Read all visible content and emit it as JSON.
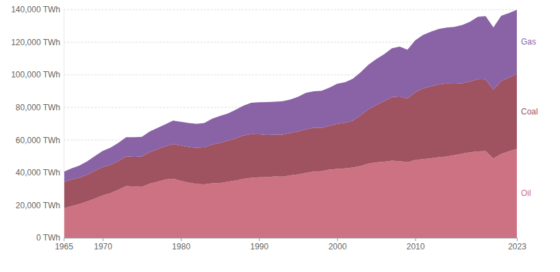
{
  "chart_data": {
    "type": "stacked_area",
    "stacked": true,
    "grid": true,
    "x": [
      1965,
      1966,
      1967,
      1968,
      1969,
      1970,
      1971,
      1972,
      1973,
      1974,
      1975,
      1976,
      1977,
      1978,
      1979,
      1980,
      1981,
      1982,
      1983,
      1984,
      1985,
      1986,
      1987,
      1988,
      1989,
      1990,
      1991,
      1992,
      1993,
      1994,
      1995,
      1996,
      1997,
      1998,
      1999,
      2000,
      2001,
      2002,
      2003,
      2004,
      2005,
      2006,
      2007,
      2008,
      2009,
      2010,
      2011,
      2012,
      2013,
      2014,
      2015,
      2016,
      2017,
      2018,
      2019,
      2020,
      2021,
      2022,
      2023
    ],
    "xlim": [
      1965,
      2023
    ],
    "xticks": [
      1965,
      1970,
      1980,
      1990,
      2000,
      2010,
      2023
    ],
    "ylim": [
      0,
      140000
    ],
    "yticks": [
      {
        "value": 0,
        "label": "0 TWh"
      },
      {
        "value": 20000,
        "label": "20,000 TWh"
      },
      {
        "value": 40000,
        "label": "40,000 TWh"
      },
      {
        "value": 60000,
        "label": "60,000 TWh"
      },
      {
        "value": 80000,
        "label": "80,000 TWh"
      },
      {
        "value": 100000,
        "label": "100,000 TWh"
      },
      {
        "value": 120000,
        "label": "120,000 TWh"
      },
      {
        "value": 140000,
        "label": "140,000 TWh"
      }
    ],
    "series": [
      {
        "name": "Oil",
        "color": "#cd7282",
        "values": [
          18100,
          19400,
          20700,
          22300,
          24100,
          26000,
          27400,
          29400,
          31700,
          31400,
          31200,
          33200,
          34400,
          35700,
          36300,
          34900,
          33800,
          33000,
          32800,
          33400,
          33500,
          34400,
          35100,
          36200,
          36800,
          37100,
          37200,
          37600,
          37500,
          38300,
          38900,
          39800,
          40700,
          40900,
          41800,
          42300,
          42600,
          43100,
          44000,
          45500,
          46200,
          46700,
          47300,
          47000,
          46300,
          47700,
          48200,
          48800,
          49400,
          49800,
          50700,
          51600,
          52400,
          53000,
          53200,
          48700,
          51500,
          53100,
          54600
        ]
      },
      {
        "name": "Coal",
        "color": "#9f5260",
        "values": [
          16100,
          16300,
          16100,
          16400,
          17000,
          17400,
          17300,
          17600,
          18200,
          18200,
          18600,
          19300,
          19900,
          20300,
          21200,
          21800,
          21900,
          22200,
          22800,
          23800,
          24700,
          25100,
          25900,
          26500,
          26800,
          26400,
          25900,
          25700,
          25800,
          25900,
          26300,
          26700,
          26800,
          26500,
          26800,
          27600,
          27900,
          28700,
          31100,
          33300,
          35300,
          37100,
          39000,
          39600,
          39200,
          41500,
          43500,
          44000,
          44700,
          44900,
          43900,
          43200,
          43500,
          44200,
          43800,
          42200,
          44700,
          45200,
          46000
        ]
      },
      {
        "name": "Gas",
        "color": "#8a62a6",
        "values": [
          6300,
          6900,
          7500,
          8200,
          9000,
          9900,
          10600,
          11200,
          11800,
          12100,
          12100,
          12700,
          13100,
          13600,
          14400,
          14500,
          14700,
          14700,
          14800,
          15900,
          16500,
          16700,
          17500,
          18300,
          19200,
          19600,
          20100,
          20200,
          20500,
          20600,
          21300,
          22400,
          22400,
          22800,
          23500,
          24600,
          24900,
          25700,
          26400,
          27400,
          28100,
          28800,
          29900,
          30700,
          29900,
          32000,
          32700,
          33600,
          34000,
          34300,
          34800,
          35700,
          36600,
          38400,
          39000,
          38200,
          40000,
          39600,
          39300
        ]
      }
    ]
  }
}
